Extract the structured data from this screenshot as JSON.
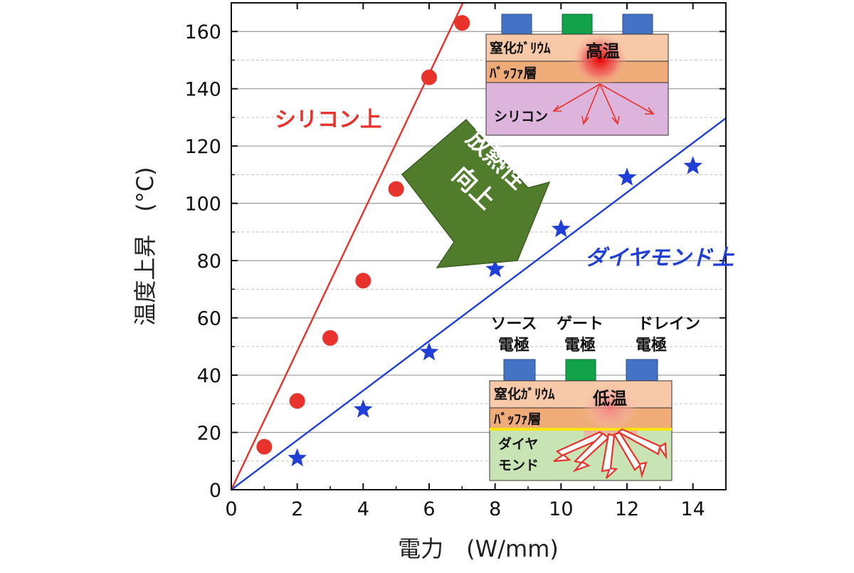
{
  "chart_data": {
    "type": "scatter",
    "xlabel": "電力　(W/mm)",
    "ylabel": "温度上昇　(°C)",
    "xlim": [
      0,
      15
    ],
    "ylim": [
      0,
      170
    ],
    "x_ticks": [
      "0",
      "2",
      "4",
      "6",
      "8",
      "10",
      "12",
      "14"
    ],
    "y_ticks": [
      "0",
      "20",
      "40",
      "60",
      "80",
      "100",
      "120",
      "140",
      "160"
    ],
    "grid": true,
    "series": [
      {
        "name": "シリコン上",
        "color": "#e8322c",
        "marker": "circle",
        "x": [
          1,
          2,
          3,
          4,
          5,
          6,
          7
        ],
        "y": [
          15,
          31,
          53,
          73,
          105,
          144,
          163
        ],
        "fit_slope": 24.2
      },
      {
        "name": "ダイヤモンド上",
        "color": "#1f3fd6",
        "marker": "star",
        "x": [
          2,
          4,
          6,
          8,
          10,
          12,
          14
        ],
        "y": [
          11,
          28,
          48,
          77,
          91,
          109,
          113
        ],
        "fit_slope": 8.65
      }
    ],
    "annotations": {
      "arrow_text_line1": "放熱性",
      "arrow_text_line2": "向上",
      "top_inset": {
        "layer1": "窒化ｶﾞﾘｳﾑ",
        "layer2": "ﾊﾞｯﾌｧ層",
        "substrate": "シリコン",
        "hot_label": "高温"
      },
      "bottom_inset": {
        "layer1": "窒化ｶﾞﾘｳﾑ",
        "layer2": "ﾊﾞｯﾌｧ層",
        "substrate_line1": "ダイヤ",
        "substrate_line2": "モンド",
        "hot_label": "低温",
        "source_label_1": "ソース",
        "source_label_2": "電極",
        "gate_label_1": "ゲート",
        "gate_label_2": "電極",
        "drain_label_1": "ドレイン",
        "drain_label_2": "電極"
      }
    },
    "colors": {
      "electrode_blue": "#4472c4",
      "electrode_green": "#12a34a",
      "gan_layer": "#f7c9a8",
      "buffer_layer": "#efab78",
      "si_substrate": "#dcb4dc",
      "diamond_substrate": "#c8e4b4",
      "arrow_fill": "#507c2c"
    }
  }
}
